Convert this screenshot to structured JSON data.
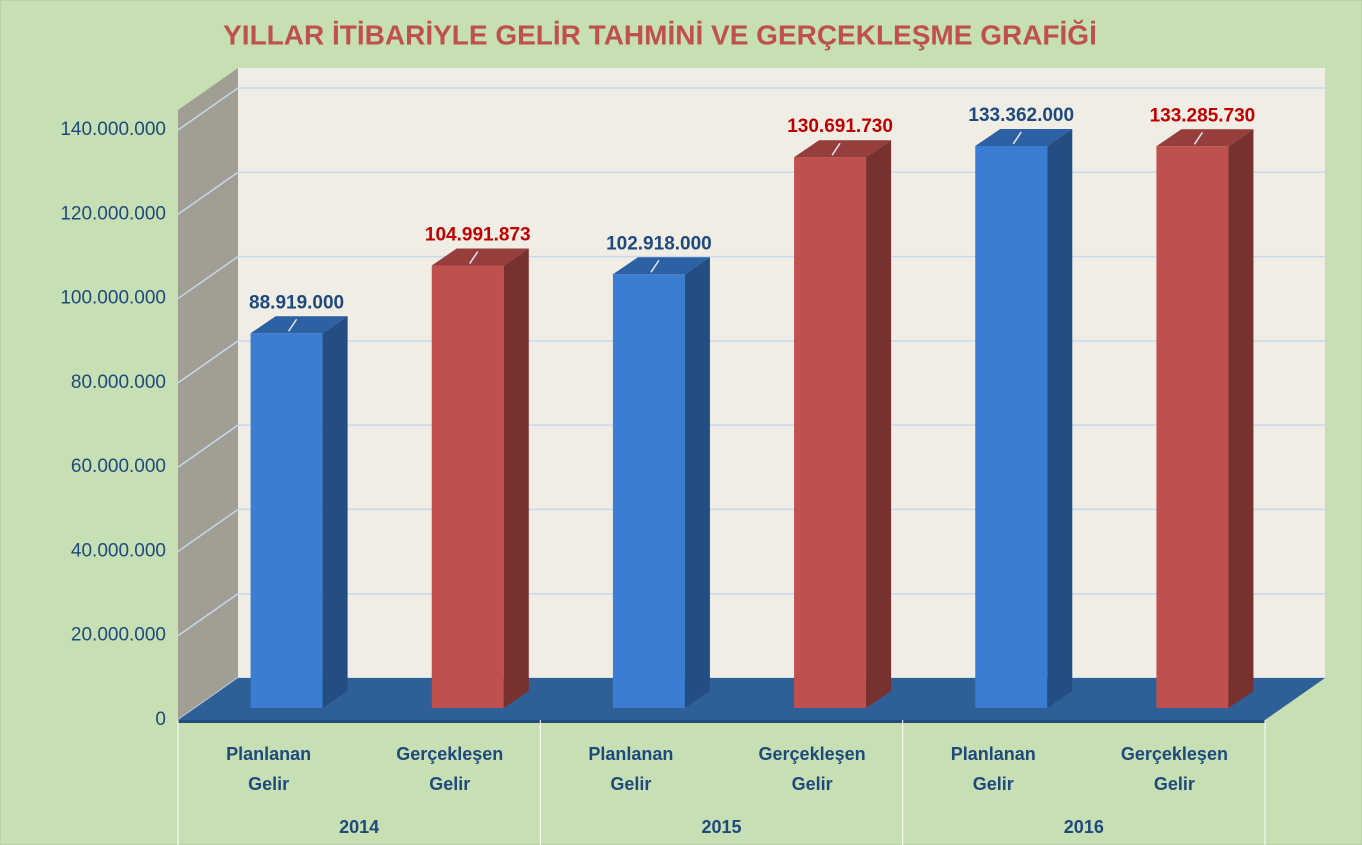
{
  "chart_data": {
    "type": "bar3d",
    "title": "YILLAR İTİBARİYLE GELİR TAHMİNİ VE GERÇEKLEŞME GRAFİĞİ",
    "categories": [
      "Planlanan Gelir",
      "Gerçekleşen Gelir",
      "Planlanan Gelir",
      "Gerçekleşen Gelir",
      "Planlanan Gelir",
      "Gerçekleşen Gelir"
    ],
    "category_groups": [
      "2014",
      "2015",
      "2016"
    ],
    "values": [
      88919000,
      104991873,
      102918000,
      130691730,
      133362000,
      133285730
    ],
    "value_labels": [
      "88.919.000",
      "104.991.873",
      "102.918.000",
      "130.691.730",
      "133.362.000",
      "133.285.730"
    ],
    "colors": [
      "#3a7dd2",
      "#c0504d",
      "#3a7dd2",
      "#c0504d",
      "#3a7dd2",
      "#c0504d"
    ],
    "label_colors": [
      "#1f497d",
      "#c00000",
      "#1f497d",
      "#c00000",
      "#1f497d",
      "#c00000"
    ],
    "ylim": [
      0,
      140000000
    ],
    "yticks": [
      0,
      {
        "value": 20000000,
        "label": "20.000.000"
      },
      {
        "value": 40000000,
        "label": "40.000.000"
      },
      {
        "value": 60000000,
        "label": "60.000.000"
      },
      {
        "value": 80000000,
        "label": "80.000.000"
      },
      {
        "value": 100000000,
        "label": "100.000.000"
      },
      {
        "value": 120000000,
        "label": "120.000.000"
      },
      {
        "value": 140000000,
        "label": "140.000.000"
      }
    ],
    "grid": true
  }
}
